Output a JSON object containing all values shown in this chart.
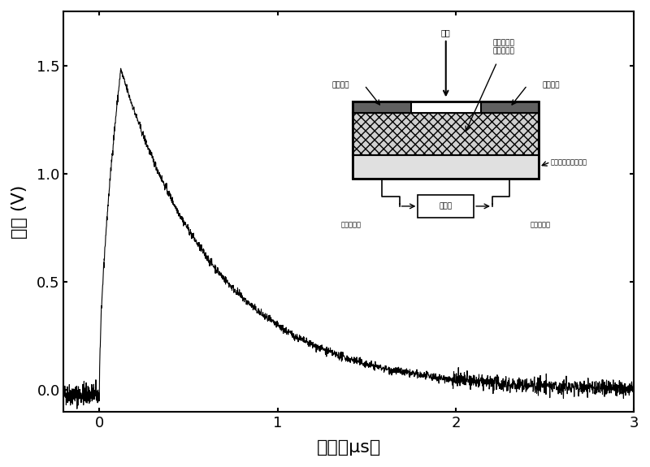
{
  "xlabel": "时间（μs）",
  "ylabel": "电压 (V)",
  "xlim": [
    -0.2,
    3.0
  ],
  "ylim": [
    -0.1,
    1.75
  ],
  "xticks": [
    0,
    1,
    2,
    3
  ],
  "yticks": [
    0.0,
    0.5,
    1.0,
    1.5
  ],
  "bg_color": "#ffffff",
  "line_color": "#000000",
  "peak_time": 0.12,
  "peak_voltage": 1.48,
  "rise_time": 0.08,
  "decay_tau": 0.55,
  "noise_amplitude": 0.018,
  "pre_noise_amplitude": 0.025,
  "inset_labels": {
    "laser": "激光",
    "film": "错配层钴氧\n化合物薄膜",
    "electrode1": "第一电极",
    "electrode2": "第二电极",
    "substrate": "斜切氧化物单晶基片",
    "oscilloscope": "示波器",
    "wire1": "第一极引线",
    "wire2": "第二极引线"
  }
}
